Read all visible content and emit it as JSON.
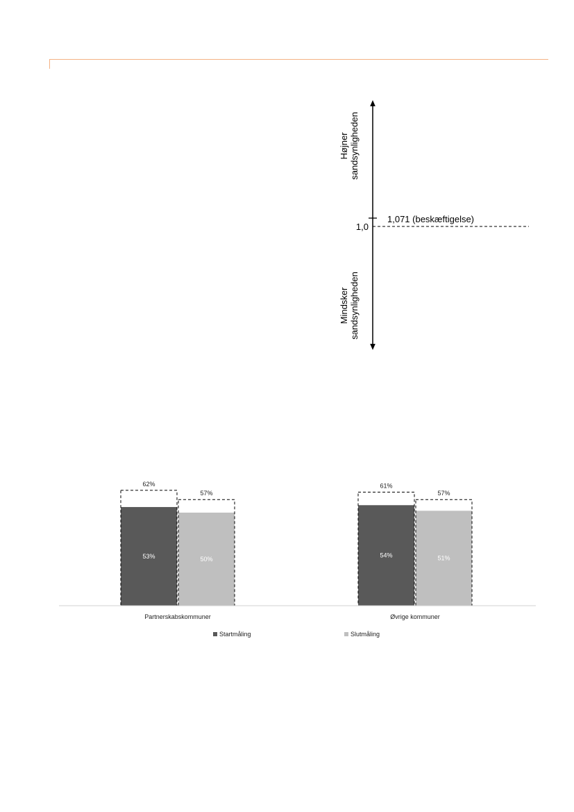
{
  "accent_color": "#f4b183",
  "odds_figure": {
    "upper_label_line1": "Højner",
    "upper_label_line2": "sandsynligheden",
    "lower_label_line1": "Mindsker",
    "lower_label_line2": "sandsynligheden",
    "baseline_label": "1,0",
    "marker_label": "1,071 (beskæftigelse)",
    "baseline_value": 1.0,
    "marker_value": 1.071
  },
  "chart_data": {
    "type": "bar",
    "categories": [
      "Partnerskabskommuner",
      "Øvrige kommuner"
    ],
    "series": [
      {
        "name": "Startmåling",
        "values": [
          53,
          54
        ],
        "outline_values": [
          62,
          61
        ],
        "color": "#595959"
      },
      {
        "name": "Slutmåling",
        "values": [
          50,
          51
        ],
        "outline_values": [
          57,
          57
        ],
        "color": "#bfbfbf"
      }
    ],
    "value_labels": [
      [
        "53%",
        "54%"
      ],
      [
        "50%",
        "51%"
      ]
    ],
    "outline_labels": [
      [
        "62%",
        "61%"
      ],
      [
        "57%",
        "57%"
      ]
    ],
    "legend_placement": "bottom",
    "grid": false
  }
}
